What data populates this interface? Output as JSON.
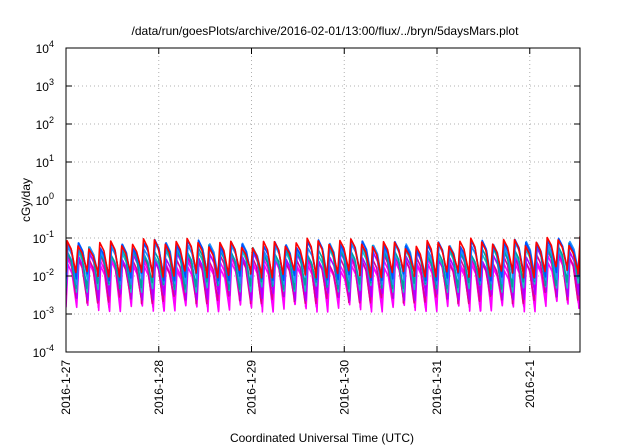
{
  "chart_data": {
    "type": "line",
    "title": "/data/run/goesPlots/archive/2016-02-01/13:00/flux/../bryn/5daysMars.plot",
    "xlabel": "Coordinated Universal Time (UTC)",
    "ylabel": "cGy/day",
    "xlim": [
      "2016-01-27T00:00",
      "2016-02-01T13:00"
    ],
    "ylim": [
      0.0001,
      10000
    ],
    "yscale": "log",
    "grid": true,
    "x_ticks": [
      {
        "value": "2016-01-27T00:00",
        "label": "2016-1-27"
      },
      {
        "value": "2016-01-28T00:00",
        "label": "2016-1-28"
      },
      {
        "value": "2016-01-29T00:00",
        "label": "2016-1-29"
      },
      {
        "value": "2016-01-30T00:00",
        "label": "2016-1-30"
      },
      {
        "value": "2016-01-31T00:00",
        "label": "2016-1-31"
      },
      {
        "value": "2016-02-01T00:00",
        "label": "2016-2-1"
      }
    ],
    "y_ticks": [
      {
        "value": 0.0001,
        "base": "10",
        "exp": "-4"
      },
      {
        "value": 0.001,
        "base": "10",
        "exp": "-3"
      },
      {
        "value": 0.01,
        "base": "10",
        "exp": "-2"
      },
      {
        "value": 0.1,
        "base": "10",
        "exp": "-1"
      },
      {
        "value": 1,
        "base": "10",
        "exp": "0"
      },
      {
        "value": 10,
        "base": "10",
        "exp": "1"
      },
      {
        "value": 100,
        "base": "10",
        "exp": "2"
      },
      {
        "value": 1000,
        "base": "10",
        "exp": "3"
      },
      {
        "value": 10000,
        "base": "10",
        "exp": "4"
      }
    ],
    "pattern": {
      "shape": "sawtooth",
      "cycles_per_day": 8.5,
      "note_peak_range_cGy_per_day": [
        0.02,
        0.09
      ],
      "note_trough_range_cGy_per_day": [
        0.0015,
        0.012
      ]
    },
    "series": [
      {
        "color": "#ff00ff",
        "peak": 0.02,
        "trough": 0.0015
      },
      {
        "color": "#ff00ff",
        "peak": 0.024,
        "trough": 0.002
      },
      {
        "color": "#e00090",
        "peak": 0.03,
        "trough": 0.0025
      },
      {
        "color": "#b000ff",
        "peak": 0.035,
        "trough": 0.003
      },
      {
        "color": "#20c0c0",
        "peak": 0.045,
        "trough": 0.005
      },
      {
        "color": "#00a0a0",
        "peak": 0.05,
        "trough": 0.006
      },
      {
        "color": "#1e90ff",
        "peak": 0.062,
        "trough": 0.008
      },
      {
        "color": "#0050ff",
        "peak": 0.07,
        "trough": 0.01
      },
      {
        "color": "#ff0000",
        "peak": 0.075,
        "trough": 0.012
      }
    ],
    "end_spike": {
      "x": "2016-02-01T01:00",
      "factor": 1.25
    }
  }
}
